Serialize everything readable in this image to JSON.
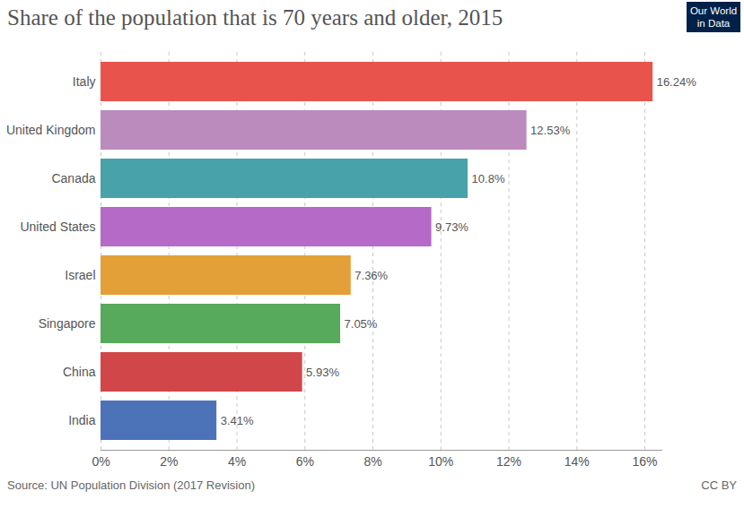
{
  "chart_data": {
    "type": "bar",
    "orientation": "horizontal",
    "title": "Share of the population that is 70 years and older, 2015",
    "logo": "Our World in Data",
    "source": "Source: UN Population Division (2017 Revision)",
    "license": "CC BY",
    "categories": [
      "Italy",
      "United Kingdom",
      "Canada",
      "United States",
      "Israel",
      "Singapore",
      "China",
      "India"
    ],
    "values": [
      16.24,
      12.53,
      10.8,
      9.73,
      7.36,
      7.05,
      5.93,
      3.41
    ],
    "value_labels": [
      "16.24%",
      "12.53%",
      "10.8%",
      "9.73%",
      "7.36%",
      "7.05%",
      "5.93%",
      "3.41%"
    ],
    "colors": [
      "#e8534c",
      "#bb8bbd",
      "#47a3a9",
      "#b46ac6",
      "#e3a039",
      "#57a95c",
      "#d14648",
      "#4c73b8"
    ],
    "xlim": [
      0,
      16.5
    ],
    "xticks": [
      {
        "value": 0,
        "label": "0%"
      },
      {
        "value": 2,
        "label": "2%"
      },
      {
        "value": 4,
        "label": "4%"
      },
      {
        "value": 6,
        "label": "6%"
      },
      {
        "value": 8,
        "label": "8%"
      },
      {
        "value": 10,
        "label": "10%"
      },
      {
        "value": 12,
        "label": "12%"
      },
      {
        "value": 14,
        "label": "14%"
      },
      {
        "value": 16,
        "label": "16%"
      }
    ],
    "grid": true,
    "data_labels": true
  }
}
